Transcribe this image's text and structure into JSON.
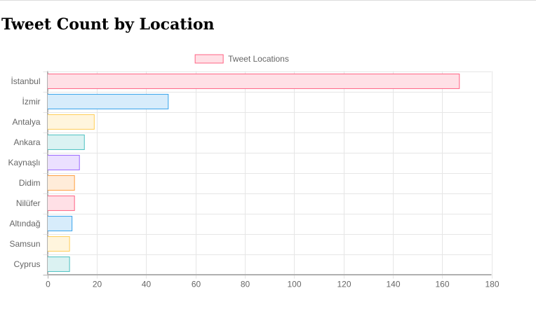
{
  "page": {
    "title": "Tweet Count by Location"
  },
  "chart_data": {
    "type": "bar",
    "orientation": "horizontal",
    "categories": [
      "İstanbul",
      "İzmir",
      "Antalya",
      "Ankara",
      "Kaynaşlı",
      "Didim",
      "Nilüfer",
      "Altındağ",
      "Samsun",
      "Cyprus"
    ],
    "series": [
      {
        "name": "Tweet Locations",
        "values": [
          167,
          49,
          19,
          15,
          13,
          11,
          11,
          10,
          9,
          9
        ]
      }
    ],
    "xlim": [
      0,
      180
    ],
    "x_ticks": [
      0,
      20,
      40,
      60,
      80,
      100,
      120,
      140,
      160,
      180
    ],
    "grid": true,
    "legend_position": "top",
    "bar_colors": [
      {
        "fill": "#ffe0e6",
        "stroke": "#ff6384"
      },
      {
        "fill": "#d7ecfb",
        "stroke": "#36a2eb"
      },
      {
        "fill": "#fff5dd",
        "stroke": "#ffce56"
      },
      {
        "fill": "#dbf2f2",
        "stroke": "#4bc0c0"
      },
      {
        "fill": "#ebe0ff",
        "stroke": "#9966ff"
      },
      {
        "fill": "#ffecd9",
        "stroke": "#ff9f40"
      },
      {
        "fill": "#ffe0e6",
        "stroke": "#ff6384"
      },
      {
        "fill": "#d7ecfb",
        "stroke": "#36a2eb"
      },
      {
        "fill": "#fff5dd",
        "stroke": "#ffce56"
      },
      {
        "fill": "#dbf2f2",
        "stroke": "#4bc0c0"
      }
    ]
  }
}
